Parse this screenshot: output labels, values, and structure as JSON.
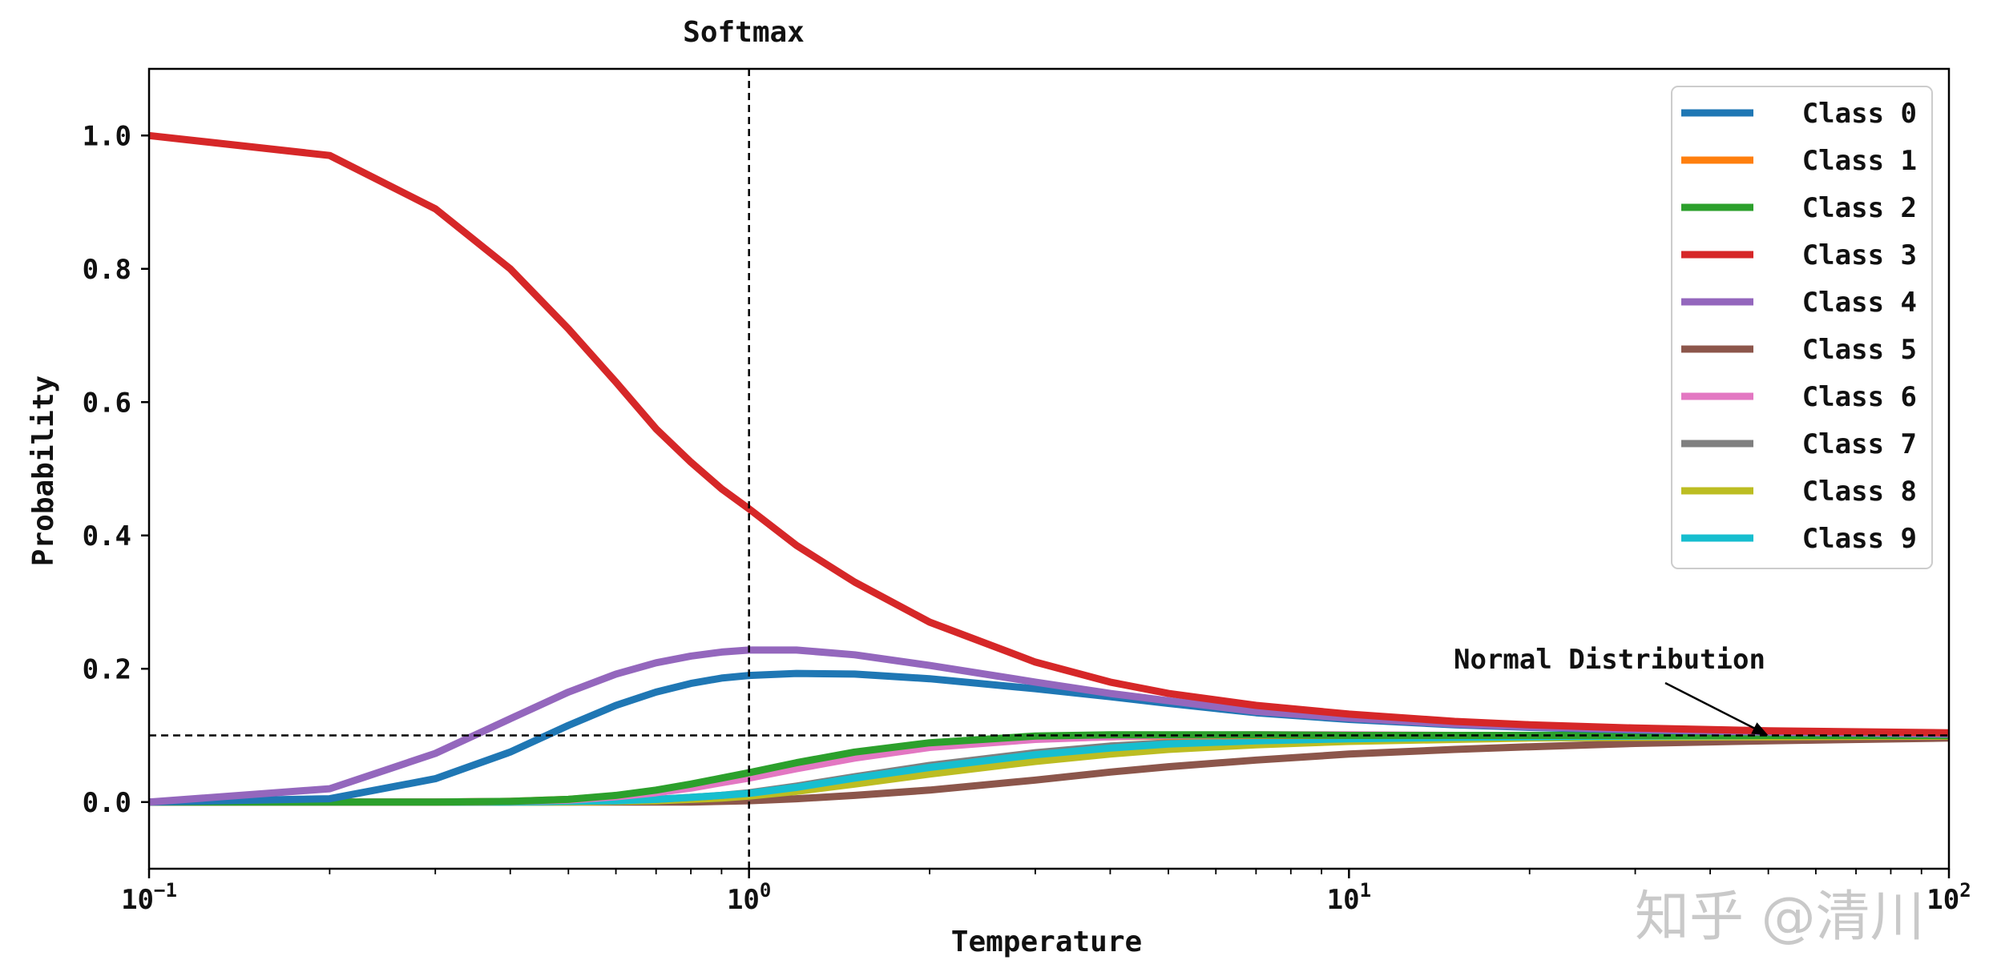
{
  "chart_data": {
    "type": "line",
    "title": "Softmax",
    "xlabel": "Temperature",
    "ylabel": "Probability",
    "xscale": "log",
    "xlim": [
      0.1,
      100
    ],
    "ylim": [
      -0.1,
      1.1
    ],
    "x_ticks": [
      {
        "value": 0.1,
        "base": "10",
        "exp": "−1"
      },
      {
        "value": 1,
        "base": "10",
        "exp": "0"
      },
      {
        "value": 10,
        "base": "10",
        "exp": "1"
      },
      {
        "value": 100,
        "base": "10",
        "exp": "2"
      }
    ],
    "y_ticks": [
      {
        "value": 0.0,
        "label": "0.0"
      },
      {
        "value": 0.2,
        "label": "0.2"
      },
      {
        "value": 0.4,
        "label": "0.4"
      },
      {
        "value": 0.6,
        "label": "0.6"
      },
      {
        "value": 0.8,
        "label": "0.8"
      },
      {
        "value": 1.0,
        "label": "1.0"
      }
    ],
    "x": [
      0.1,
      0.2,
      0.3,
      0.4,
      0.5,
      0.6,
      0.7,
      0.8,
      0.9,
      1.0,
      1.2,
      1.5,
      2,
      3,
      4,
      5,
      7,
      10,
      15,
      20,
      30,
      50,
      100
    ],
    "series": [
      {
        "name": "Class 0",
        "color": "#1f77b4",
        "values": [
          0.0,
          0.005,
          0.035,
          0.075,
          0.115,
          0.145,
          0.165,
          0.178,
          0.186,
          0.19,
          0.193,
          0.192,
          0.185,
          0.17,
          0.158,
          0.148,
          0.134,
          0.124,
          0.116,
          0.112,
          0.108,
          0.105,
          0.102
        ]
      },
      {
        "name": "Class 1",
        "color": "#ff7f0e",
        "values": [
          0.0,
          0.0,
          0.0,
          0.001,
          0.004,
          0.009,
          0.016,
          0.024,
          0.032,
          0.04,
          0.054,
          0.07,
          0.085,
          0.095,
          0.098,
          0.099,
          0.1,
          0.1,
          0.1,
          0.1,
          0.1,
          0.1,
          0.1
        ]
      },
      {
        "name": "Class 2",
        "color": "#2ca02c",
        "values": [
          0.0,
          0.0,
          0.0,
          0.001,
          0.004,
          0.01,
          0.018,
          0.027,
          0.036,
          0.044,
          0.059,
          0.075,
          0.089,
          0.099,
          0.101,
          0.101,
          0.101,
          0.1,
          0.1,
          0.1,
          0.1,
          0.1,
          0.1
        ]
      },
      {
        "name": "Class 3",
        "color": "#d62728",
        "values": [
          1.0,
          0.97,
          0.89,
          0.8,
          0.71,
          0.63,
          0.56,
          0.51,
          0.47,
          0.44,
          0.385,
          0.33,
          0.27,
          0.21,
          0.18,
          0.163,
          0.145,
          0.132,
          0.121,
          0.116,
          0.111,
          0.107,
          0.104
        ]
      },
      {
        "name": "Class 4",
        "color": "#9467bd",
        "values": [
          0.0,
          0.02,
          0.073,
          0.125,
          0.165,
          0.192,
          0.209,
          0.219,
          0.225,
          0.228,
          0.228,
          0.221,
          0.205,
          0.18,
          0.163,
          0.152,
          0.136,
          0.126,
          0.117,
          0.113,
          0.109,
          0.105,
          0.102
        ]
      },
      {
        "name": "Class 5",
        "color": "#8c564b",
        "values": [
          0.0,
          0.0,
          0.0,
          0.0,
          0.0,
          0.0,
          0.0,
          0.0,
          0.001,
          0.002,
          0.005,
          0.01,
          0.018,
          0.033,
          0.045,
          0.053,
          0.063,
          0.072,
          0.079,
          0.083,
          0.088,
          0.092,
          0.096
        ]
      },
      {
        "name": "Class 6",
        "color": "#e377c2",
        "values": [
          0.0,
          0.0,
          0.0,
          0.001,
          0.003,
          0.008,
          0.014,
          0.021,
          0.029,
          0.036,
          0.05,
          0.066,
          0.082,
          0.094,
          0.098,
          0.1,
          0.101,
          0.101,
          0.1,
          0.1,
          0.1,
          0.1,
          0.1
        ]
      },
      {
        "name": "Class 7",
        "color": "#7f7f7f",
        "values": [
          0.0,
          0.0,
          0.0,
          0.0,
          0.001,
          0.002,
          0.004,
          0.007,
          0.01,
          0.014,
          0.024,
          0.038,
          0.055,
          0.074,
          0.084,
          0.089,
          0.094,
          0.096,
          0.098,
          0.099,
          0.099,
          0.1,
          0.1
        ]
      },
      {
        "name": "Class 8",
        "color": "#bcbd22",
        "values": [
          0.0,
          0.0,
          0.0,
          0.0,
          0.0,
          0.001,
          0.002,
          0.004,
          0.006,
          0.009,
          0.016,
          0.027,
          0.042,
          0.061,
          0.072,
          0.079,
          0.086,
          0.091,
          0.094,
          0.096,
          0.097,
          0.098,
          0.099
        ]
      },
      {
        "name": "Class 9",
        "color": "#17becf",
        "values": [
          0.0,
          0.0,
          0.0,
          0.0,
          0.001,
          0.002,
          0.004,
          0.007,
          0.01,
          0.013,
          0.022,
          0.036,
          0.052,
          0.071,
          0.081,
          0.087,
          0.092,
          0.095,
          0.097,
          0.098,
          0.099,
          0.1,
          0.1
        ]
      }
    ],
    "reference_lines": [
      {
        "orientation": "vertical",
        "value": 1.0,
        "style": "dashed"
      },
      {
        "orientation": "horizontal",
        "value": 0.1,
        "style": "dashed"
      }
    ],
    "annotations": [
      {
        "text": "Normal Distribution",
        "points_to": {
          "x": 50,
          "y": 0.1
        }
      }
    ],
    "legend": {
      "placement": "top-right"
    },
    "grid": false
  },
  "watermark": "知乎 @清川"
}
